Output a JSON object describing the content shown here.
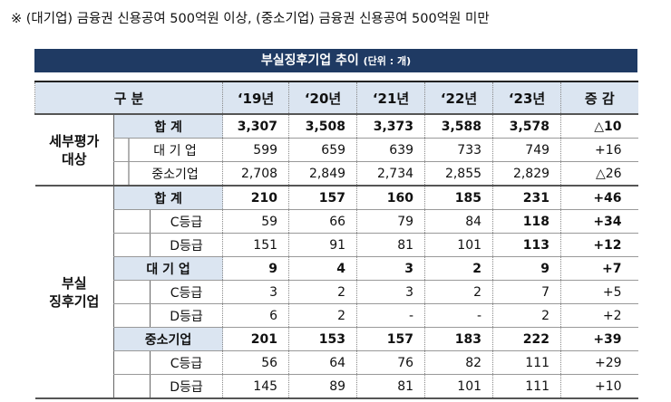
{
  "note": "※ (대기업) 금융권 신용공여 500억원 이상, (중소기업) 금융권 신용공여 500억원 미만",
  "title": "부실징후기업 추이",
  "unit": "(단위 : 개)",
  "header": {
    "category": "구 분",
    "years": [
      "‘19년",
      "‘20년",
      "‘21년",
      "‘22년",
      "‘23년"
    ],
    "change": "증 감"
  },
  "groups": [
    {
      "label": [
        "세부평가",
        "대상"
      ],
      "rows": [
        {
          "label": "합 계",
          "level": 1,
          "values": [
            "3,307",
            "3,508",
            "3,373",
            "3,588",
            "3,578"
          ],
          "change": "△10"
        },
        {
          "label": "대 기 업",
          "level": 2,
          "values": [
            "599",
            "659",
            "639",
            "733",
            "749"
          ],
          "change": "+16"
        },
        {
          "label": "중소기업",
          "level": 2,
          "values": [
            "2,708",
            "2,849",
            "2,734",
            "2,855",
            "2,829"
          ],
          "change": "△26"
        }
      ]
    },
    {
      "label": [
        "부실",
        "징후기업"
      ],
      "rows": [
        {
          "label": "합 계",
          "level": 1,
          "values": [
            "210",
            "157",
            "160",
            "185",
            "231"
          ],
          "change": "+46"
        },
        {
          "label": "C등급",
          "level": 2,
          "values": [
            "59",
            "66",
            "79",
            "84",
            "118"
          ],
          "change": "+34",
          "emphasis": true
        },
        {
          "label": "D등급",
          "level": 2,
          "values": [
            "151",
            "91",
            "81",
            "101",
            "113"
          ],
          "change": "+12",
          "emphasis": true
        },
        {
          "label": "대 기 업",
          "level": 1,
          "values": [
            "9",
            "4",
            "3",
            "2",
            "9"
          ],
          "change": "+7"
        },
        {
          "label": "C등급",
          "level": 2,
          "values": [
            "3",
            "2",
            "3",
            "2",
            "7"
          ],
          "change": "+5"
        },
        {
          "label": "D등급",
          "level": 2,
          "values": [
            "6",
            "2",
            "-",
            "-",
            "2"
          ],
          "change": "+2"
        },
        {
          "label": "중소기업",
          "level": 1,
          "values": [
            "201",
            "153",
            "157",
            "183",
            "222"
          ],
          "change": "+39"
        },
        {
          "label": "C등급",
          "level": 2,
          "values": [
            "56",
            "64",
            "76",
            "82",
            "111"
          ],
          "change": "+29"
        },
        {
          "label": "D등급",
          "level": 2,
          "values": [
            "145",
            "89",
            "81",
            "101",
            "111"
          ],
          "change": "+10"
        }
      ]
    }
  ]
}
